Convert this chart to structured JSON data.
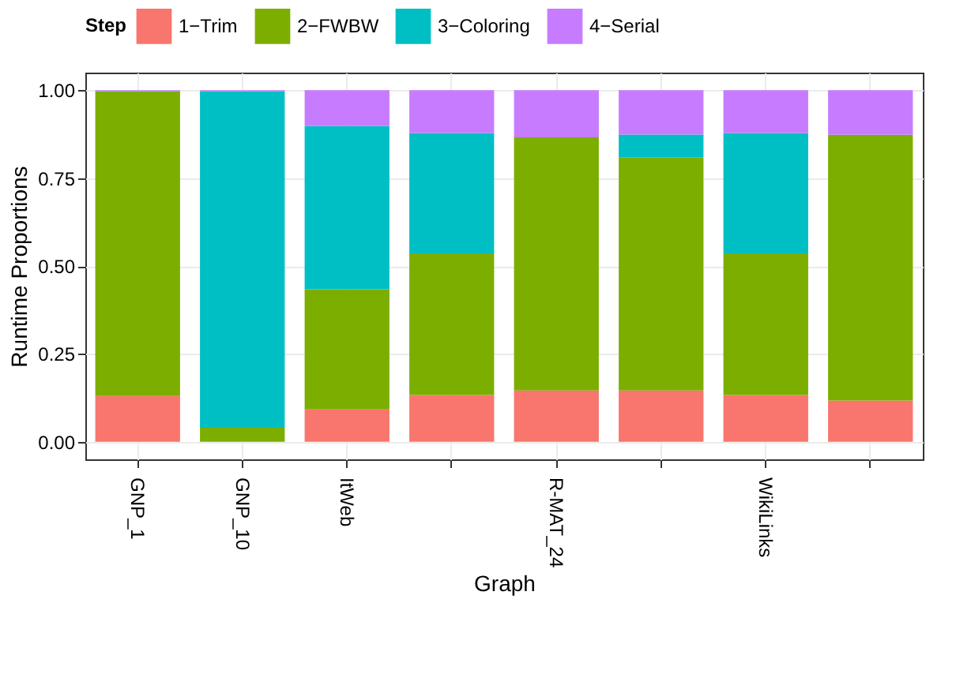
{
  "chart_data": {
    "type": "bar",
    "stacked": true,
    "xlabel": "Graph",
    "ylabel": "Runtime Proportions",
    "legend_title": "Step",
    "legend": "top",
    "grid": true,
    "categories": [
      "GNP_1",
      "GNP_10",
      "ItWeb",
      null,
      "R-MAT_24",
      null,
      "WikiLinks",
      null
    ],
    "series": [
      {
        "name": "1−Trim",
        "color": "#f8766d",
        "values": [
          0.13,
          0,
          0.092,
          0.133,
          0.146,
          0.146,
          0.133,
          0.117
        ]
      },
      {
        "name": "2−FWBW",
        "color": "#7cae00",
        "values": [
          0.867,
          0.04,
          0.342,
          0.403,
          0.72,
          0.663,
          0.403,
          0.756
        ]
      },
      {
        "name": "3−Coloring",
        "color": "#00bfc4",
        "values": [
          0,
          0.957,
          0.464,
          0.342,
          0,
          0.065,
          0.342,
          0
        ]
      },
      {
        "name": "4−Serial",
        "color": "#c77cff",
        "values": [
          0.003,
          0.003,
          0.102,
          0.122,
          0.134,
          0.126,
          0.122,
          0.127
        ]
      }
    ],
    "ylim": [
      -0.05,
      1.05
    ],
    "yticks": [
      {
        "value": 0,
        "label": "0.00"
      },
      {
        "value": 0.25,
        "label": "0.25"
      },
      {
        "value": 0.5,
        "label": "0.50"
      },
      {
        "value": 0.75,
        "label": "0.75"
      },
      {
        "value": 1,
        "label": "1.00"
      }
    ]
  }
}
